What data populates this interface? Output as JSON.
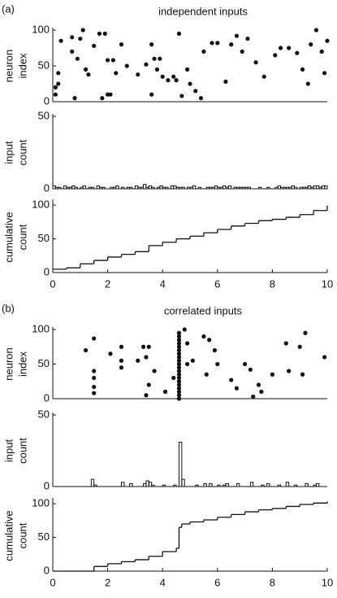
{
  "chart_data": [
    {
      "type": "scatter",
      "panel_label": "(a)",
      "title": "independent inputs",
      "ylabel": [
        "neuron",
        "index"
      ],
      "color": "#111111",
      "xlim": [
        0,
        10
      ],
      "ylim": [
        0,
        100
      ],
      "yticks": [
        0,
        50,
        100
      ],
      "x": [
        0.1,
        0.2,
        0.2,
        0.1,
        0.3,
        0.7,
        0.7,
        0.8,
        0.9,
        1,
        1.1,
        1.2,
        1.3,
        1.5,
        1.7,
        1.8,
        1.9,
        2,
        2.1,
        2,
        2.2,
        2.3,
        2.5,
        2.7,
        3.1,
        3.4,
        3.6,
        3.6,
        3.7,
        3.8,
        3.9,
        4,
        4.2,
        4.4,
        4.5,
        4.6,
        4.7,
        4.9,
        5,
        5.2,
        5.4,
        5.5,
        5.8,
        6,
        6.3,
        6.5,
        6.7,
        6.9,
        7.1,
        7.4,
        7.7,
        8.1,
        8.3,
        8.6,
        8.9,
        9.1,
        9.3,
        9.4,
        9.6,
        9.8,
        9.9,
        10
      ],
      "values": [
        10,
        25,
        40,
        20,
        85,
        70,
        90,
        5,
        60,
        88,
        100,
        45,
        38,
        78,
        95,
        5,
        95,
        58,
        10,
        10,
        58,
        40,
        80,
        50,
        38,
        52,
        10,
        80,
        60,
        45,
        60,
        35,
        30,
        35,
        30,
        95,
        8,
        45,
        25,
        15,
        5,
        70,
        82,
        82,
        28,
        80,
        92,
        70,
        88,
        55,
        35,
        65,
        75,
        75,
        68,
        45,
        25,
        80,
        100,
        70,
        40,
        85
      ]
    },
    {
      "type": "histogram",
      "ylabel": [
        "input",
        "count"
      ],
      "color": "#111111",
      "xlim": [
        0,
        10
      ],
      "ylim": [
        0,
        50
      ],
      "yticks": [
        0,
        50
      ],
      "bins": [
        0,
        0.1,
        0.2,
        0.3,
        0.4,
        0.5,
        0.6,
        0.7,
        0.8,
        0.9,
        1,
        1.1,
        1.2,
        1.3,
        1.4,
        1.5,
        1.6,
        1.7,
        1.8,
        1.9,
        2,
        2.1,
        2.2,
        2.3,
        2.4,
        2.5,
        2.6,
        2.7,
        2.8,
        2.9,
        3,
        3.1,
        3.2,
        3.3,
        3.4,
        3.5,
        3.6,
        3.7,
        3.8,
        3.9,
        4,
        4.1,
        4.2,
        4.3,
        4.4,
        4.5,
        4.6,
        4.7,
        4.8,
        4.9,
        5,
        5.1,
        5.2,
        5.3,
        5.4,
        5.5,
        5.6,
        5.7,
        5.8,
        5.9,
        6,
        6.1,
        6.2,
        6.3,
        6.4,
        6.5,
        6.6,
        6.7,
        6.8,
        6.9,
        7,
        7.1,
        7.2,
        7.3,
        7.4,
        7.5,
        7.6,
        7.7,
        7.8,
        7.9,
        8,
        8.1,
        8.2,
        8.3,
        8.4,
        8.5,
        8.6,
        8.7,
        8.8,
        8.9,
        9,
        9.1,
        9.2,
        9.3,
        9.4,
        9.5,
        9.6,
        9.7,
        9.8,
        9.9,
        10
      ],
      "values": [
        2,
        1,
        1,
        0,
        2,
        1,
        1,
        2,
        1,
        0,
        1,
        2,
        0,
        1,
        1,
        0,
        2,
        1,
        1,
        0,
        0,
        1,
        1,
        2,
        0,
        1,
        0,
        1,
        1,
        0,
        2,
        1,
        1,
        3,
        1,
        2,
        1,
        0,
        1,
        2,
        1,
        1,
        0,
        2,
        2,
        1,
        1,
        1,
        0,
        1,
        1,
        2,
        0,
        1,
        0,
        0,
        1,
        1,
        1,
        2,
        1,
        1,
        2,
        1,
        2,
        0,
        1,
        1,
        1,
        1,
        1,
        1,
        0,
        0,
        0,
        1,
        0,
        0,
        1,
        0,
        0,
        1,
        2,
        1,
        1,
        1,
        1,
        2,
        1,
        0,
        1,
        1,
        1,
        2,
        1,
        2,
        2,
        1,
        2,
        2
      ]
    },
    {
      "type": "step",
      "ylabel": [
        "cumulative",
        "count"
      ],
      "color": "#111111",
      "xlim": [
        0,
        10
      ],
      "ylim": [
        0,
        105
      ],
      "yticks": [
        0,
        50,
        100
      ],
      "xticks": [
        0,
        2,
        4,
        6,
        8,
        10
      ],
      "x": [
        0,
        0.5,
        1,
        1.5,
        2,
        2.5,
        3,
        3.5,
        4,
        4.5,
        5,
        5.5,
        6,
        6.5,
        7,
        7.5,
        8,
        8.5,
        9,
        9.5,
        10
      ],
      "values": [
        5,
        7,
        13,
        18,
        23,
        27,
        31,
        40,
        45,
        50,
        54,
        59,
        64,
        69,
        73,
        77,
        79,
        82,
        86,
        92,
        99
      ]
    },
    {
      "type": "scatter",
      "panel_label": "(b)",
      "title": "correlated inputs",
      "ylabel": [
        "neuron",
        "index"
      ],
      "color": "#111111",
      "xlim": [
        0,
        10
      ],
      "ylim": [
        0,
        100
      ],
      "yticks": [
        0,
        50,
        100
      ],
      "x": [
        1.2,
        1.5,
        1.5,
        1.5,
        1.5,
        1.5,
        2.1,
        2.5,
        2.5,
        2.5,
        3.1,
        3.3,
        3.4,
        3.4,
        3.5,
        3.5,
        3.7,
        4.1,
        4.4,
        4.6,
        4.6,
        4.6,
        4.6,
        4.6,
        4.6,
        4.6,
        4.6,
        4.6,
        4.6,
        4.6,
        4.6,
        4.6,
        4.6,
        4.6,
        4.6,
        4.6,
        4.6,
        4.6,
        4.6,
        4.8,
        4.9,
        4.9,
        5.1,
        5.5,
        5.6,
        5.7,
        5.9,
        6,
        6.5,
        6.7,
        7,
        7.2,
        7.3,
        7.5,
        7.6,
        8,
        8.5,
        8.6,
        9,
        9.1,
        9.2,
        9.9
      ],
      "values": [
        70,
        87,
        40,
        30,
        17,
        8,
        65,
        75,
        55,
        45,
        55,
        75,
        60,
        5,
        20,
        75,
        40,
        10,
        30,
        0,
        5,
        10,
        15,
        20,
        25,
        30,
        35,
        40,
        45,
        50,
        55,
        60,
        65,
        70,
        75,
        80,
        85,
        90,
        95,
        100,
        80,
        50,
        55,
        90,
        35,
        85,
        70,
        50,
        27,
        15,
        50,
        42,
        3,
        20,
        10,
        35,
        80,
        40,
        75,
        35,
        95,
        60
      ]
    },
    {
      "type": "histogram",
      "ylabel": [
        "input",
        "count"
      ],
      "color": "#111111",
      "xlim": [
        0,
        10
      ],
      "ylim": [
        0,
        50
      ],
      "yticks": [
        0,
        50
      ],
      "bins": [
        0,
        0.1,
        0.2,
        0.3,
        0.4,
        0.5,
        0.6,
        0.7,
        0.8,
        0.9,
        1,
        1.1,
        1.2,
        1.3,
        1.4,
        1.5,
        1.6,
        1.7,
        1.8,
        1.9,
        2,
        2.1,
        2.2,
        2.3,
        2.4,
        2.5,
        2.6,
        2.7,
        2.8,
        2.9,
        3,
        3.1,
        3.2,
        3.3,
        3.4,
        3.5,
        3.6,
        3.7,
        3.8,
        3.9,
        4,
        4.1,
        4.2,
        4.3,
        4.4,
        4.5,
        4.6,
        4.7,
        4.8,
        4.9,
        5,
        5.1,
        5.2,
        5.3,
        5.4,
        5.5,
        5.6,
        5.7,
        5.8,
        5.9,
        6,
        6.1,
        6.2,
        6.3,
        6.4,
        6.5,
        6.6,
        6.7,
        6.8,
        6.9,
        7,
        7.1,
        7.2,
        7.3,
        7.4,
        7.5,
        7.6,
        7.7,
        7.8,
        7.9,
        8,
        8.1,
        8.2,
        8.3,
        8.4,
        8.5,
        8.6,
        8.7,
        8.8,
        8.9,
        9,
        9.1,
        9.2,
        9.3,
        9.4,
        9.5,
        9.6,
        9.7,
        9.8,
        9.9,
        10
      ],
      "values": [
        0,
        0,
        0,
        0,
        0,
        0,
        0,
        0,
        0,
        0,
        0,
        0,
        0,
        0,
        5,
        1,
        0,
        0,
        0,
        0,
        0,
        0,
        0,
        0,
        0,
        3,
        0,
        0,
        2,
        0,
        0,
        0,
        0,
        2,
        4,
        3,
        1,
        0,
        0,
        0,
        1,
        0,
        0,
        0,
        1,
        0,
        31,
        5,
        0,
        0,
        0,
        0,
        1,
        0,
        0,
        2,
        0,
        2,
        0,
        0,
        1,
        0,
        1,
        2,
        0,
        0,
        0,
        2,
        0,
        0,
        0,
        0,
        3,
        0,
        0,
        0,
        1,
        0,
        2,
        0,
        0,
        0,
        1,
        0,
        0,
        3,
        0,
        0,
        1,
        0,
        0,
        0,
        2,
        0,
        0,
        1,
        2,
        0,
        0,
        0
      ]
    },
    {
      "type": "step",
      "ylabel": [
        "cumulative",
        "count"
      ],
      "color": "#111111",
      "xlim": [
        0,
        10
      ],
      "ylim": [
        0,
        105
      ],
      "yticks": [
        0,
        50,
        100
      ],
      "xticks": [
        0,
        2,
        4,
        6,
        8,
        10
      ],
      "x": [
        0,
        1.2,
        1.5,
        2,
        2.5,
        3,
        3.5,
        4,
        4.5,
        4.6,
        4.7,
        5,
        5.5,
        6,
        6.5,
        7,
        7.5,
        8,
        8.5,
        9,
        9.5,
        10
      ],
      "values": [
        0,
        0,
        7,
        11,
        14,
        17,
        22,
        29,
        34,
        65,
        70,
        73,
        76,
        80,
        84,
        88,
        91,
        93,
        96,
        99,
        101,
        103
      ]
    }
  ]
}
